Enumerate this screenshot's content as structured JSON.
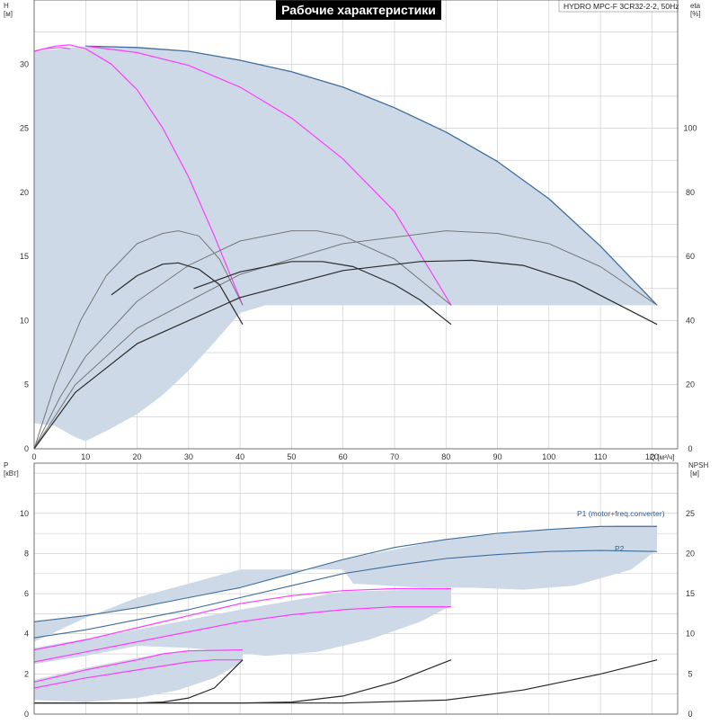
{
  "title": "Рабочие характеристики",
  "model": "HYDRO MPC-F 3CR32-2-2, 50Hz",
  "colors": {
    "envelope": "#cdd9e6",
    "max_curve": "#3f6d9a",
    "magenta": "#ff3cff",
    "eff_dark": "#2a2a2a",
    "eff_gray": "#777777",
    "p_blue": "#3f6d9a"
  },
  "chart_data": [
    {
      "type": "line",
      "panel": "head",
      "xlabel": "Q [м³/ч]",
      "ylabel_left": [
        "H",
        "[м]"
      ],
      "ylabel_right": [
        "eta",
        "[%]"
      ],
      "xlim": [
        0,
        125
      ],
      "ylim": [
        0,
        35
      ],
      "y2lim": [
        0,
        140
      ],
      "xticks": [
        0,
        10,
        20,
        30,
        40,
        50,
        60,
        70,
        80,
        90,
        100,
        110,
        120
      ],
      "yticks": [
        0,
        5,
        10,
        15,
        20,
        25,
        30
      ],
      "y2ticks": [
        0,
        20,
        40,
        60,
        80,
        100
      ],
      "grid": true,
      "envelope": {
        "upper": [
          [
            0,
            31
          ],
          [
            10,
            31.4
          ],
          [
            20,
            31.3
          ],
          [
            30,
            31
          ],
          [
            40,
            30.3
          ],
          [
            50,
            29.4
          ],
          [
            60,
            28.2
          ],
          [
            70,
            26.6
          ],
          [
            80,
            24.7
          ],
          [
            90,
            22.4
          ],
          [
            100,
            19.5
          ],
          [
            110,
            15.8
          ],
          [
            121,
            11.2
          ]
        ],
        "lower": [
          [
            121,
            11.2
          ],
          [
            100,
            11.2
          ],
          [
            80,
            11.2
          ],
          [
            60,
            11.2
          ],
          [
            45,
            11.2
          ],
          [
            40,
            10.6
          ],
          [
            35,
            8.3
          ],
          [
            30,
            6.1
          ],
          [
            25,
            4.2
          ],
          [
            20,
            2.7
          ],
          [
            15,
            1.6
          ],
          [
            10,
            0.6
          ],
          [
            8,
            0.9
          ],
          [
            4,
            1.8
          ],
          [
            0,
            2
          ]
        ]
      },
      "series": [
        {
          "role": "max_curve",
          "points": [
            [
              10,
              31.4
            ],
            [
              20,
              31.3
            ],
            [
              30,
              31
            ],
            [
              40,
              30.3
            ],
            [
              50,
              29.4
            ],
            [
              60,
              28.2
            ],
            [
              70,
              26.6
            ],
            [
              80,
              24.7
            ],
            [
              90,
              22.4
            ],
            [
              100,
              19.5
            ],
            [
              110,
              15.8
            ],
            [
              121,
              11.2
            ]
          ]
        },
        {
          "role": "magenta",
          "points": [
            [
              0,
              31
            ],
            [
              4,
              31.4
            ],
            [
              7,
              31.5
            ],
            [
              10,
              31.2
            ],
            [
              15,
              30
            ],
            [
              20,
              28
            ],
            [
              25,
              25
            ],
            [
              30,
              21.2
            ],
            [
              35,
              16.6
            ],
            [
              40.5,
              11.2
            ]
          ]
        },
        {
          "role": "magenta",
          "points": [
            [
              0,
              31
            ],
            [
              2,
              31.2
            ],
            [
              5,
              31.3
            ],
            [
              7,
              31.2
            ]
          ]
        },
        {
          "role": "magenta",
          "points": [
            [
              10,
              31.4
            ],
            [
              20,
              30.9
            ],
            [
              30,
              29.9
            ],
            [
              40,
              28.2
            ],
            [
              50,
              25.8
            ],
            [
              60,
              22.6
            ],
            [
              70,
              18.5
            ],
            [
              81,
              11.2
            ]
          ]
        },
        {
          "role": "eff_gray",
          "points": [
            [
              0,
              0
            ],
            [
              4,
              5
            ],
            [
              9,
              10
            ],
            [
              14,
              13.5
            ],
            [
              20,
              16
            ],
            [
              25,
              16.8
            ],
            [
              28,
              17
            ],
            [
              32,
              16.6
            ],
            [
              36,
              14.8
            ],
            [
              40.5,
              11.2
            ]
          ]
        },
        {
          "role": "eff_gray",
          "points": [
            [
              0,
              0
            ],
            [
              5,
              4
            ],
            [
              10,
              7.2
            ],
            [
              20,
              11.5
            ],
            [
              30,
              14.3
            ],
            [
              40,
              16.2
            ],
            [
              50,
              17
            ],
            [
              55,
              17
            ],
            [
              60,
              16.6
            ],
            [
              70,
              14.8
            ],
            [
              81,
              11.2
            ]
          ]
        },
        {
          "role": "eff_gray",
          "points": [
            [
              0,
              0
            ],
            [
              8,
              5
            ],
            [
              20,
              9.4
            ],
            [
              40,
              13.6
            ],
            [
              60,
              16
            ],
            [
              80,
              17
            ],
            [
              90,
              16.8
            ],
            [
              100,
              16
            ],
            [
              110,
              14.2
            ],
            [
              121,
              11.2
            ]
          ]
        },
        {
          "role": "eff_dark",
          "points": [
            [
              15,
              12
            ],
            [
              20,
              13.5
            ],
            [
              25,
              14.4
            ],
            [
              28,
              14.5
            ],
            [
              32,
              14
            ],
            [
              36,
              12.8
            ],
            [
              40.5,
              9.7
            ]
          ]
        },
        {
          "role": "eff_dark",
          "points": [
            [
              31,
              12.5
            ],
            [
              40,
              13.8
            ],
            [
              50,
              14.6
            ],
            [
              56,
              14.6
            ],
            [
              62,
              14.2
            ],
            [
              70,
              12.8
            ],
            [
              75,
              11.6
            ],
            [
              81,
              9.7
            ]
          ]
        },
        {
          "role": "eff_dark",
          "points": [
            [
              0,
              0
            ],
            [
              8,
              4.4
            ],
            [
              20,
              8.2
            ],
            [
              40,
              11.8
            ],
            [
              60,
              13.9
            ],
            [
              75,
              14.6
            ],
            [
              85,
              14.7
            ],
            [
              95,
              14.3
            ],
            [
              105,
              13
            ],
            [
              121,
              9.7
            ]
          ]
        }
      ]
    },
    {
      "type": "line",
      "panel": "power",
      "xlabel": "",
      "ylabel_left": [
        "P",
        "[кВт]"
      ],
      "ylabel_right": [
        "NPSH",
        "[м]"
      ],
      "xlim": [
        0,
        125
      ],
      "ylim": [
        0,
        12.5
      ],
      "y2lim": [
        0,
        31.25
      ],
      "yticks": [
        0,
        2,
        4,
        6,
        8,
        10
      ],
      "y2ticks": [
        0,
        5,
        10,
        15,
        20,
        25
      ],
      "grid": true,
      "bands": [
        {
          "upper": [
            [
              0,
              4.6
            ],
            [
              20,
              5.3
            ],
            [
              40,
              6.3
            ],
            [
              60,
              7.7
            ],
            [
              80,
              8.7
            ],
            [
              100,
              9.2
            ],
            [
              113,
              9.4
            ],
            [
              121,
              9.4
            ]
          ],
          "lower": [
            [
              121,
              8.2
            ],
            [
              116,
              7.2
            ],
            [
              105,
              6.4
            ],
            [
              95,
              6.2
            ],
            [
              85,
              6.3
            ],
            [
              75,
              6.3
            ],
            [
              62,
              6.5
            ],
            [
              60,
              7.2
            ],
            [
              50,
              7.2
            ],
            [
              40,
              7.2
            ],
            [
              30,
              6.5
            ],
            [
              20,
              5.8
            ],
            [
              10,
              4.8
            ],
            [
              0,
              3.6
            ]
          ]
        },
        {
          "upper": [
            [
              0,
              3.3
            ],
            [
              20,
              4.2
            ],
            [
              40,
              5.2
            ],
            [
              60,
              6.1
            ],
            [
              81,
              6.25
            ]
          ],
          "lower": [
            [
              81,
              5.4
            ],
            [
              75,
              4.6
            ],
            [
              65,
              3.7
            ],
            [
              55,
              3.1
            ],
            [
              45,
              2.9
            ],
            [
              30,
              3.3
            ],
            [
              20,
              3.4
            ],
            [
              10,
              2.9
            ],
            [
              0,
              2.5
            ]
          ]
        },
        {
          "upper": [
            [
              0,
              1.7
            ],
            [
              10,
              2.3
            ],
            [
              20,
              2.8
            ],
            [
              30,
              3.2
            ],
            [
              40.5,
              3.2
            ]
          ],
          "lower": [
            [
              40.5,
              2.6
            ],
            [
              35,
              1.8
            ],
            [
              28,
              1.2
            ],
            [
              20,
              0.8
            ],
            [
              10,
              0.6
            ],
            [
              0,
              0.7
            ]
          ]
        }
      ],
      "series": [
        {
          "role": "p_blue",
          "name": "P1 (motor+freq.converter)",
          "points": [
            [
              0,
              4.6
            ],
            [
              10,
              4.9
            ],
            [
              20,
              5.3
            ],
            [
              30,
              5.8
            ],
            [
              40,
              6.3
            ],
            [
              50,
              7
            ],
            [
              60,
              7.7
            ],
            [
              70,
              8.3
            ],
            [
              80,
              8.7
            ],
            [
              90,
              9.0
            ],
            [
              100,
              9.2
            ],
            [
              110,
              9.35
            ],
            [
              121,
              9.35
            ]
          ]
        },
        {
          "role": "p_blue",
          "name": "P2",
          "points": [
            [
              0,
              3.8
            ],
            [
              10,
              4.2
            ],
            [
              20,
              4.7
            ],
            [
              30,
              5.2
            ],
            [
              40,
              5.8
            ],
            [
              50,
              6.4
            ],
            [
              60,
              7
            ],
            [
              70,
              7.4
            ],
            [
              80,
              7.75
            ],
            [
              90,
              7.95
            ],
            [
              100,
              8.1
            ],
            [
              110,
              8.15
            ],
            [
              121,
              8.1
            ]
          ]
        },
        {
          "role": "magenta",
          "points": [
            [
              0,
              3.2
            ],
            [
              10,
              3.7
            ],
            [
              20,
              4.3
            ],
            [
              30,
              4.9
            ],
            [
              40,
              5.5
            ],
            [
              50,
              5.9
            ],
            [
              60,
              6.15
            ],
            [
              70,
              6.25
            ],
            [
              81,
              6.25
            ]
          ]
        },
        {
          "role": "magenta",
          "points": [
            [
              0,
              2.6
            ],
            [
              10,
              3.1
            ],
            [
              20,
              3.6
            ],
            [
              30,
              4.1
            ],
            [
              40,
              4.6
            ],
            [
              50,
              4.95
            ],
            [
              60,
              5.2
            ],
            [
              70,
              5.35
            ],
            [
              81,
              5.35
            ]
          ]
        },
        {
          "role": "magenta",
          "points": [
            [
              0,
              1.6
            ],
            [
              10,
              2.2
            ],
            [
              20,
              2.7
            ],
            [
              25,
              3
            ],
            [
              30,
              3.15
            ],
            [
              40.5,
              3.2
            ]
          ]
        },
        {
          "role": "magenta",
          "points": [
            [
              0,
              1.3
            ],
            [
              10,
              1.8
            ],
            [
              20,
              2.2
            ],
            [
              30,
              2.6
            ],
            [
              35,
              2.7
            ],
            [
              40.5,
              2.7
            ]
          ]
        },
        {
          "role": "eff_dark",
          "points": [
            [
              0,
              0.55
            ],
            [
              20,
              0.55
            ],
            [
              25,
              0.6
            ],
            [
              30,
              0.8
            ],
            [
              35,
              1.3
            ],
            [
              40.5,
              2.7
            ]
          ]
        },
        {
          "role": "eff_dark",
          "points": [
            [
              0,
              0.55
            ],
            [
              40,
              0.55
            ],
            [
              50,
              0.6
            ],
            [
              60,
              0.9
            ],
            [
              70,
              1.6
            ],
            [
              81,
              2.7
            ]
          ]
        },
        {
          "role": "eff_dark",
          "points": [
            [
              0,
              0.55
            ],
            [
              60,
              0.55
            ],
            [
              80,
              0.7
            ],
            [
              95,
              1.2
            ],
            [
              110,
              2
            ],
            [
              121,
              2.7
            ]
          ]
        }
      ]
    }
  ]
}
